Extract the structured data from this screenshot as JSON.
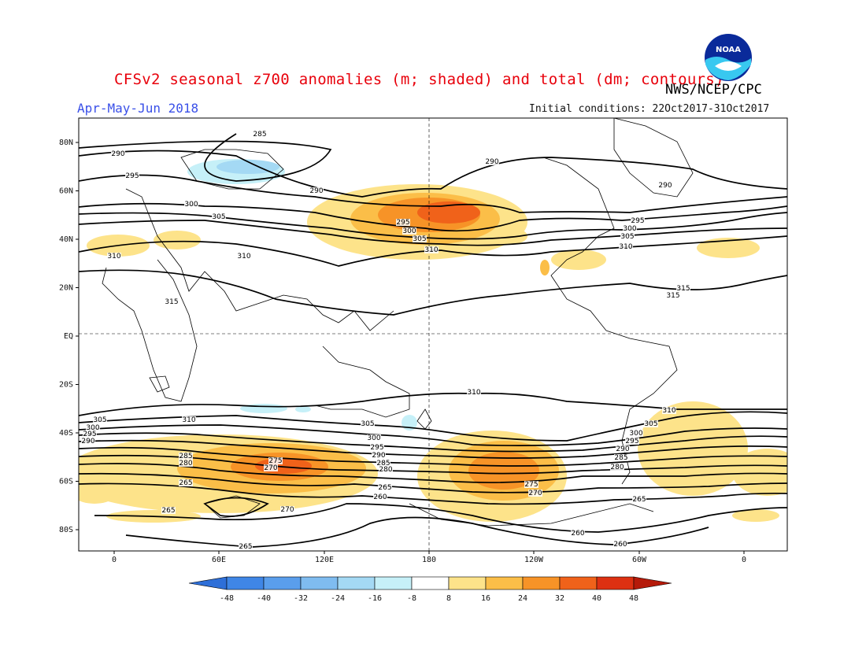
{
  "header": {
    "title": "CFSv2 seasonal z700 anomalies (m; shaded) and total (dm; contours)",
    "period": "Apr-May-Jun 2018",
    "agency": "NWS/NCEP/CPC",
    "initial_conditions": "Initial conditions: 22Oct2017-31Oct2017",
    "logo_text": "NOAA"
  },
  "axes": {
    "lat_labels": [
      "80N",
      "60N",
      "40N",
      "20N",
      "EQ",
      "20S",
      "40S",
      "60S",
      "80S"
    ],
    "lon_labels": [
      "0",
      "60E",
      "120E",
      "180",
      "120W",
      "60W",
      "0"
    ]
  },
  "colorbar": {
    "ticks": [
      "-48",
      "-40",
      "-32",
      "-24",
      "-16",
      "-8",
      "8",
      "16",
      "24",
      "32",
      "40",
      "48"
    ],
    "colors": [
      "#2e6fd8",
      "#3f86e6",
      "#5a9eec",
      "#7fbcf0",
      "#a4d9f4",
      "#c6f0f8",
      "#ffffff",
      "#fde38a",
      "#fbbe48",
      "#f79327",
      "#f0621a",
      "#dd3012",
      "#b51a0a"
    ]
  },
  "contour_labels": [
    {
      "text": "285"
    },
    {
      "text": "290"
    },
    {
      "text": "295"
    },
    {
      "text": "300"
    },
    {
      "text": "305"
    },
    {
      "text": "310"
    },
    {
      "text": "290"
    },
    {
      "text": "290"
    },
    {
      "text": "295"
    },
    {
      "text": "300"
    },
    {
      "text": "305"
    },
    {
      "text": "310"
    },
    {
      "text": "290"
    },
    {
      "text": "295"
    },
    {
      "text": "300"
    },
    {
      "text": "305"
    },
    {
      "text": "310"
    },
    {
      "text": "310"
    },
    {
      "text": "315"
    },
    {
      "text": "315"
    },
    {
      "text": "315"
    },
    {
      "text": "310"
    },
    {
      "text": "310"
    },
    {
      "text": "305"
    },
    {
      "text": "300"
    },
    {
      "text": "295"
    },
    {
      "text": "290"
    },
    {
      "text": "305"
    },
    {
      "text": "300"
    },
    {
      "text": "295"
    },
    {
      "text": "290"
    },
    {
      "text": "285"
    },
    {
      "text": "280"
    },
    {
      "text": "275"
    },
    {
      "text": "270"
    },
    {
      "text": "265"
    },
    {
      "text": "265"
    },
    {
      "text": "270"
    },
    {
      "text": "265"
    },
    {
      "text": "260"
    },
    {
      "text": "285"
    },
    {
      "text": "280"
    },
    {
      "text": "275"
    },
    {
      "text": "270"
    },
    {
      "text": "310"
    },
    {
      "text": "305"
    },
    {
      "text": "300"
    },
    {
      "text": "295"
    },
    {
      "text": "290"
    },
    {
      "text": "285"
    },
    {
      "text": "280"
    },
    {
      "text": "265"
    },
    {
      "text": "260"
    },
    {
      "text": "260"
    },
    {
      "text": "265"
    }
  ]
}
